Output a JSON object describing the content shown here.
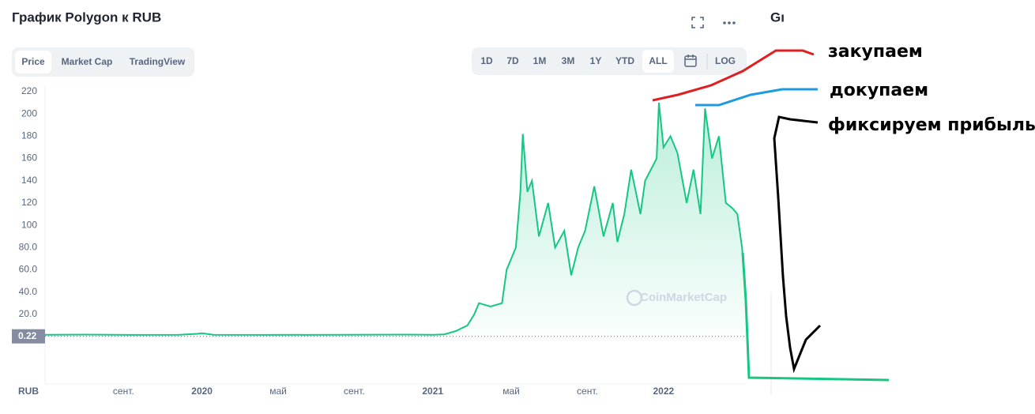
{
  "header": {
    "title": "График Polygon к RUB",
    "side_title": "Gı"
  },
  "tabs": [
    "Price",
    "Market Cap",
    "TradingView"
  ],
  "ranges": [
    "1D",
    "7D",
    "1M",
    "3M",
    "1Y",
    "YTD",
    "ALL",
    "LOG"
  ],
  "annotations": [
    "закупаем",
    "докупаем",
    "фиксируем прибыль"
  ],
  "chart_data": {
    "type": "line",
    "color": "#16c784",
    "y_label": "RUB",
    "watermark": "CoinMarketCap",
    "current_price": 0.22,
    "x": [
      2019.32,
      2019.5,
      2019.7,
      2019.9,
      2019.98,
      2020.0,
      2020.05,
      2020.3,
      2020.6,
      2020.9,
      2021.0,
      2021.05,
      2021.1,
      2021.15,
      2021.18,
      2021.2,
      2021.25,
      2021.3,
      2021.32,
      2021.34,
      2021.36,
      2021.38,
      2021.39,
      2021.41,
      2021.43,
      2021.46,
      2021.5,
      2021.53,
      2021.57,
      2021.6,
      2021.63,
      2021.66,
      2021.7,
      2021.74,
      2021.78,
      2021.8,
      2021.83,
      2021.86,
      2021.9,
      2021.92,
      2021.97,
      2021.98,
      2022.0,
      2022.03,
      2022.06,
      2022.1,
      2022.13,
      2022.16,
      2022.18,
      2022.21,
      2022.24,
      2022.27,
      2022.3,
      2022.32,
      2022.34,
      2022.355
    ],
    "values": [
      1.6,
      1.8,
      1.5,
      1.6,
      2.5,
      3,
      1.6,
      1.5,
      1.6,
      1.8,
      1.6,
      2,
      5,
      10,
      20,
      30,
      27,
      30,
      60,
      70,
      80,
      130,
      182,
      130,
      140,
      90,
      120,
      80,
      95,
      55,
      80,
      95,
      135,
      90,
      120,
      85,
      110,
      150,
      110,
      140,
      160,
      210,
      170,
      180,
      165,
      120,
      150,
      110,
      205,
      160,
      180,
      120,
      115,
      110,
      80,
      40
    ],
    "xlim": [
      2019.32,
      2022.36
    ],
    "xticks": [
      {
        "value": 2019.66,
        "label": "сент."
      },
      {
        "value": 2020.0,
        "label": "2020"
      },
      {
        "value": 2020.33,
        "label": "май"
      },
      {
        "value": 2020.66,
        "label": "сент."
      },
      {
        "value": 2021.0,
        "label": "2021"
      },
      {
        "value": 2021.34,
        "label": "май"
      },
      {
        "value": 2021.67,
        "label": "сент."
      },
      {
        "value": 2022.0,
        "label": "2022"
      }
    ],
    "ylim": [
      0,
      225
    ],
    "yticks": [
      {
        "value": 20,
        "label": "20.0"
      },
      {
        "value": 40,
        "label": "40.0"
      },
      {
        "value": 60,
        "label": "60.0"
      },
      {
        "value": 80,
        "label": "80.0"
      },
      100,
      120,
      140,
      160,
      180,
      200,
      220
    ],
    "grid": false
  }
}
